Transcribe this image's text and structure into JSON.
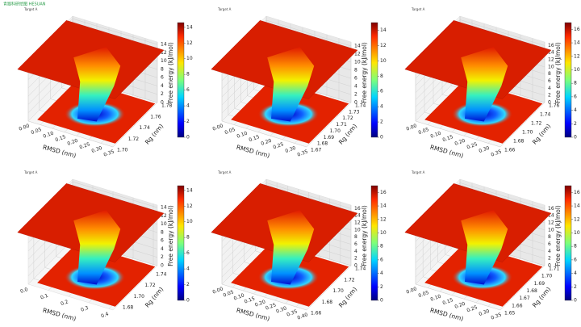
{
  "watermark": "青题科研绘图 HESUAN",
  "chart_data": [
    {
      "type": "surface3d",
      "title": "Target A",
      "xlabel": "RMSD (nm)",
      "ylabel": "Rg (nm)",
      "zlabel": "Free energy (kJ/mol)",
      "colormap": "jet",
      "xlim": [
        0,
        0.35
      ],
      "xticks": [
        {
          "value": 0,
          "label": "0.00"
        },
        {
          "value": 0.05,
          "label": "0.05"
        },
        {
          "value": 0.1,
          "label": "0.10"
        },
        {
          "value": 0.15,
          "label": "0.15"
        },
        {
          "value": 0.2,
          "label": "0.20"
        },
        {
          "value": 0.25,
          "label": "0.25"
        },
        {
          "value": 0.3,
          "label": "0.30"
        },
        {
          "value": 0.35,
          "label": "0.35"
        }
      ],
      "ylim": [
        1.7,
        1.78
      ],
      "yticks": [
        {
          "value": 1.7,
          "label": "1.70"
        },
        1.72,
        1.74,
        1.76,
        1.78
      ],
      "zlim": [
        0,
        14.6
      ],
      "zticks": [
        0,
        2,
        4,
        6,
        8,
        10,
        12,
        14
      ],
      "clim": [
        0,
        14.6
      ],
      "cticks": [
        0,
        2,
        4,
        6,
        8,
        10,
        12,
        14
      ]
    },
    {
      "type": "surface3d",
      "title": "Target A",
      "xlabel": "RMSD (nm)",
      "ylabel": "Rg (nm)",
      "zlabel": "Free energy (kJ/mol)",
      "colormap": "jet",
      "xlim": [
        0,
        0.35
      ],
      "xticks": [
        {
          "value": 0,
          "label": "0.00"
        },
        {
          "value": 0.05,
          "label": "0.05"
        },
        {
          "value": 0.1,
          "label": "0.10"
        },
        {
          "value": 0.15,
          "label": "0.15"
        },
        {
          "value": 0.2,
          "label": "0.20"
        },
        {
          "value": 0.25,
          "label": "0.25"
        },
        {
          "value": 0.3,
          "label": "0.30"
        },
        {
          "value": 0.35,
          "label": "0.35"
        }
      ],
      "ylim": [
        1.67,
        1.74
      ],
      "yticks": [
        1.67,
        1.68,
        1.69,
        {
          "value": 1.7,
          "label": "1.70"
        },
        1.71,
        1.72,
        1.73,
        1.74
      ],
      "zlim": [
        0,
        15
      ],
      "zticks": [
        0,
        2,
        4,
        6,
        8,
        10,
        12,
        14
      ],
      "clim": [
        0,
        15
      ],
      "cticks": [
        0,
        2,
        4,
        6,
        8,
        10,
        12,
        14
      ]
    },
    {
      "type": "surface3d",
      "title": "Target A",
      "xlabel": "RMSD (nm)",
      "ylabel": "Rg (nm)",
      "zlabel": "Free energy (kJ/mol)",
      "colormap": "jet",
      "xlim": [
        0,
        0.35
      ],
      "xticks": [
        {
          "value": 0,
          "label": "0.00"
        },
        {
          "value": 0.05,
          "label": "0.05"
        },
        {
          "value": 0.1,
          "label": "0.10"
        },
        {
          "value": 0.15,
          "label": "0.15"
        },
        {
          "value": 0.2,
          "label": "0.20"
        },
        {
          "value": 0.25,
          "label": "0.25"
        },
        {
          "value": 0.3,
          "label": "0.30"
        },
        {
          "value": 0.35,
          "label": "0.35"
        }
      ],
      "ylim": [
        1.66,
        1.76
      ],
      "yticks": [
        1.66,
        1.68,
        {
          "value": 1.7,
          "label": "1.70"
        },
        1.72,
        1.74,
        1.76
      ],
      "zlim": [
        0,
        17
      ],
      "zticks": [
        0,
        2,
        4,
        6,
        8,
        10,
        12,
        14,
        16
      ],
      "clim": [
        0,
        17
      ],
      "cticks": [
        0,
        2,
        4,
        6,
        8,
        10,
        12,
        14,
        16
      ]
    },
    {
      "type": "surface3d",
      "title": "Target A",
      "xlabel": "RMSD (nm)",
      "ylabel": "Rg (nm)",
      "zlabel": "Free energy (kJ/mol)",
      "colormap": "jet",
      "xlim": [
        0,
        0.42
      ],
      "xticks": [
        {
          "value": 0,
          "label": "0.0"
        },
        0.1,
        0.2,
        0.3,
        0.4
      ],
      "ylim": [
        1.67,
        1.75
      ],
      "yticks": [
        1.68,
        {
          "value": 1.7,
          "label": "1.70"
        },
        1.72,
        1.74
      ],
      "zlim": [
        0,
        14.6
      ],
      "zticks": [
        0,
        2,
        4,
        6,
        8,
        10,
        12,
        14
      ],
      "clim": [
        0,
        14.6
      ],
      "cticks": [
        0,
        2,
        4,
        6,
        8,
        10,
        12,
        14
      ]
    },
    {
      "type": "surface3d",
      "title": "Target A",
      "xlabel": "RMSD (nm)",
      "ylabel": "Rg (nm)",
      "zlabel": "Free energy (kJ/mol)",
      "colormap": "jet",
      "xlim": [
        0,
        0.4
      ],
      "xticks": [
        {
          "value": 0,
          "label": "0.00"
        },
        {
          "value": 0.05,
          "label": "0.05"
        },
        {
          "value": 0.1,
          "label": "0.10"
        },
        {
          "value": 0.15,
          "label": "0.15"
        },
        {
          "value": 0.2,
          "label": "0.20"
        },
        {
          "value": 0.25,
          "label": "0.25"
        },
        {
          "value": 0.3,
          "label": "0.30"
        },
        {
          "value": 0.35,
          "label": "0.35"
        },
        {
          "value": 0.4,
          "label": "0.40"
        }
      ],
      "ylim": [
        1.66,
        1.74
      ],
      "yticks": [
        1.66,
        1.68,
        {
          "value": 1.7,
          "label": "1.70"
        },
        1.72,
        1.74
      ],
      "zlim": [
        0,
        17
      ],
      "zticks": [
        0,
        2,
        4,
        6,
        8,
        10,
        12,
        14,
        16
      ],
      "clim": [
        0,
        17
      ],
      "cticks": [
        0,
        2,
        4,
        6,
        8,
        10,
        12,
        14,
        16
      ]
    },
    {
      "type": "surface3d",
      "title": "Target A",
      "xlabel": "RMSD (nm)",
      "ylabel": "Rg (nm)",
      "zlabel": "Free energy (kJ/mol)",
      "colormap": "jet",
      "xlim": [
        0,
        0.35
      ],
      "xticks": [
        {
          "value": 0,
          "label": "0.00"
        },
        {
          "value": 0.05,
          "label": "0.05"
        },
        {
          "value": 0.1,
          "label": "0.10"
        },
        {
          "value": 0.15,
          "label": "0.15"
        },
        {
          "value": 0.2,
          "label": "0.20"
        },
        {
          "value": 0.25,
          "label": "0.25"
        },
        {
          "value": 0.3,
          "label": "0.30"
        },
        {
          "value": 0.35,
          "label": "0.35"
        }
      ],
      "ylim": [
        1.65,
        1.71
      ],
      "yticks": [
        1.65,
        1.66,
        1.67,
        1.68,
        1.69,
        {
          "value": 1.7,
          "label": "1.70"
        },
        1.71
      ],
      "zlim": [
        0,
        17
      ],
      "zticks": [
        0,
        2,
        4,
        6,
        8,
        10,
        12,
        14,
        16
      ],
      "clim": [
        0,
        17
      ],
      "cticks": [
        0,
        2,
        4,
        6,
        8,
        10,
        12,
        14,
        16
      ]
    }
  ]
}
